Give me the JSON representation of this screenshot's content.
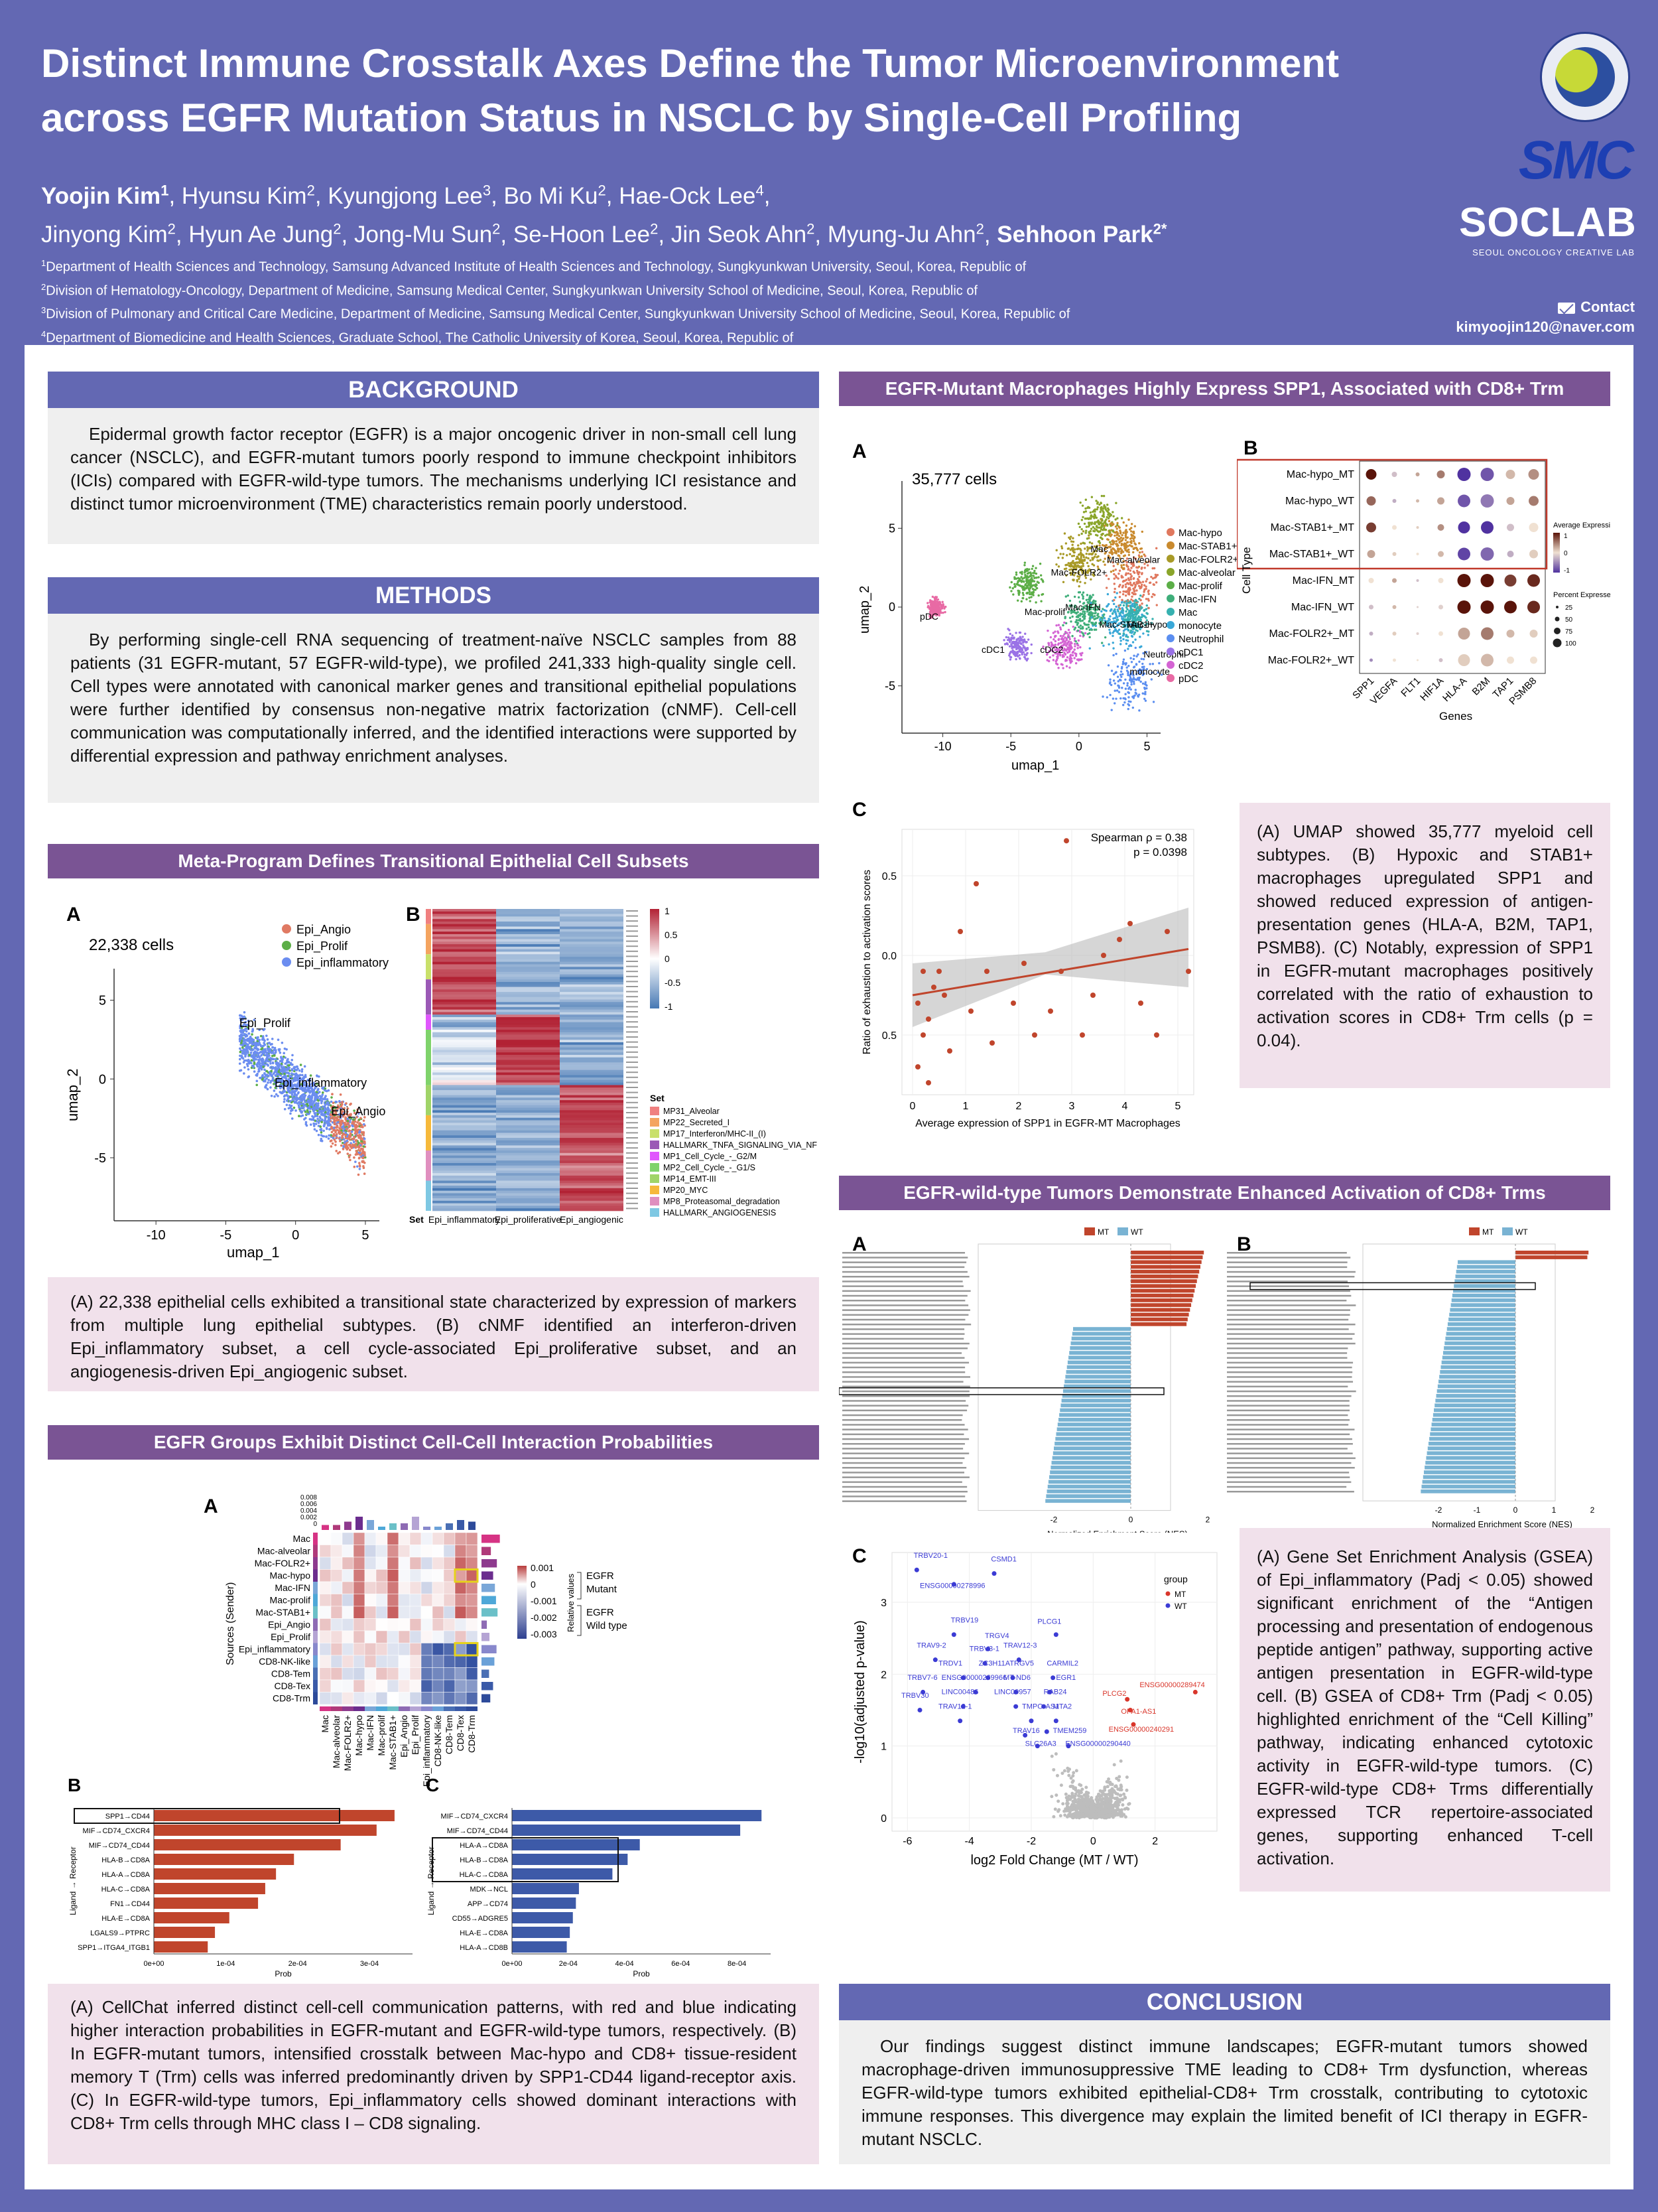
{
  "header": {
    "title_line1": "Distinct Immune Crosstalk Axes Define the Tumor Microenvironment",
    "title_line2": "across EGFR Mutation Status in NSCLC by Single-Cell Profiling",
    "authors_line1": [
      {
        "name": "Yoojin Kim",
        "sup": "1",
        "bold": true
      },
      {
        "name": "Hyunsu Kim",
        "sup": "2"
      },
      {
        "name": "Kyungjong Lee",
        "sup": "3"
      },
      {
        "name": "Bo Mi Ku",
        "sup": "2"
      },
      {
        "name": "Hae-Ock Lee",
        "sup": "4"
      }
    ],
    "authors_line2": [
      {
        "name": "Jinyong Kim",
        "sup": "2"
      },
      {
        "name": "Hyun Ae Jung",
        "sup": "2"
      },
      {
        "name": "Jong-Mu Sun",
        "sup": "2"
      },
      {
        "name": "Se-Hoon Lee",
        "sup": "2"
      },
      {
        "name": "Jin Seok Ahn",
        "sup": "2"
      },
      {
        "name": "Myung-Ju Ahn",
        "sup": "2"
      },
      {
        "name": "Sehhoon Park",
        "sup": "2*",
        "bold": true
      }
    ],
    "affiliations": [
      {
        "sup": "1",
        "text": "Department of Health Sciences and Technology, Samsung Advanced Institute of Health Sciences and Technology, Sungkyunkwan University, Seoul, Korea, Republic of"
      },
      {
        "sup": "2",
        "text": "Division of Hematology-Oncology, Department of Medicine, Samsung Medical Center, Sungkyunkwan University School of Medicine, Seoul, Korea, Republic of"
      },
      {
        "sup": "3",
        "text": "Division of Pulmonary and Critical Care Medicine, Department of Medicine, Samsung Medical Center, Sungkyunkwan University School of Medicine, Seoul, Korea, Republic of"
      },
      {
        "sup": "4",
        "text": "Department of Biomedicine and Health Sciences, Graduate School, The Catholic University of Korea, Seoul, Korea, Republic of"
      }
    ],
    "logo_smc": "SMC",
    "logo_soclab": "SOCLAB",
    "logo_soclab_sub": "SEOUL ONCOLOGY CREATIVE LAB",
    "contact_label": "Contact",
    "contact_email": "kimyoojin120@naver.com"
  },
  "background": {
    "heading": "BACKGROUND",
    "text": "Epidermal growth factor receptor (EGFR) is a major oncogenic driver in non-small cell lung cancer (NSCLC), and EGFR-mutant tumors poorly respond to immune checkpoint inhibitors (ICIs) compared with EGFR-wild-type tumors. The mechanisms underlying ICI resistance and distinct tumor microenvironment (TME) characteristics remain poorly understood."
  },
  "methods": {
    "heading": "METHODS",
    "text": "By performing single-cell RNA sequencing of treatment-naïve NSCLC samples from 88 patients (31 EGFR-mutant, 57 EGFR-wild-type), we profiled 241,333 high-quality single cell. Cell types were annotated with canonical marker genes and transitional epithelial populations were further identified by consensus non-negative matrix factorization (cNMF). Cell-cell communication was computationally inferred, and the identified interactions were supported by differential expression and pathway enrichment analyses."
  },
  "metaprogram": {
    "heading": "Meta-Program Defines Transitional Epithelial Cell Subsets",
    "panel_a": "A",
    "panel_b": "B",
    "cells_label": "22,338 cells",
    "legend": [
      "Epi_Angio",
      "Epi_Prolif",
      "Epi_inflammatory"
    ],
    "legend_colors": [
      "#e07a63",
      "#5cae47",
      "#6b8df0"
    ],
    "cluster_labels": [
      "Epi_Prolif",
      "Epi_inflammatory",
      "Epi_Angio"
    ],
    "xlabel": "umap_1",
    "ylabel": "umap_2",
    "xticks": [
      "-10",
      "-5",
      "0",
      "5"
    ],
    "yticks": [
      "5",
      "0",
      "-5"
    ],
    "heatmap_cols": [
      "Epi_inflammatory",
      "Epi_proliferative",
      "Epi_angiogenic"
    ],
    "heatmap_set_label": "Set",
    "heatmap_scale": [
      "1",
      "0.5",
      "0",
      "-0.5",
      "-1"
    ],
    "set_legend_title": "Set",
    "set_legend": [
      "MP31_Alveolar",
      "MP22_Secreted_I",
      "MP17_Interferon/MHC-II_(I)",
      "HALLMARK_TNFA_SIGNALING_VIA_NFKB",
      "MP1_Cell_Cycle_-_G2/M",
      "MP2_Cell_Cycle_-_G1/S",
      "MP14_EMT-III",
      "MP20_MYC",
      "MP8_Proteasomal_degradation",
      "HALLMARK_ANGIOGENESIS"
    ],
    "set_colors": [
      "#f08080",
      "#f4a460",
      "#c9e06a",
      "#9b59b6",
      "#e056fd",
      "#7fd36b",
      "#a0d468",
      "#f6b93b",
      "#e08fbf",
      "#7ec8e3"
    ],
    "caption": "(A) 22,338 epithelial cells exhibited a transitional state characterized by expression of markers from multiple lung epithelial subtypes. (B) cNMF identified an interferon-driven Epi_inflammatory subset, a cell cycle-associated Epi_proliferative subset, and an angiogenesis-driven Epi_angiogenic subset."
  },
  "cellchat": {
    "heading": "EGFR Groups Exhibit Distinct Cell-Cell Interaction Probabilities",
    "panel_a": "A",
    "panel_b": "B",
    "panel_c": "C",
    "senders": [
      "Mac",
      "Mac-alveolar",
      "Mac-FOLR2+",
      "Mac-hypo",
      "Mac-IFN",
      "Mac-prolif",
      "Mac-STAB1+",
      "Epi_Angio",
      "Epi_Prolif",
      "Epi_inflammatory",
      "CD8-NK-like",
      "CD8-Tem",
      "CD8-Tex",
      "CD8-Trm"
    ],
    "receivers": [
      "Mac",
      "Mac-alveolar",
      "Mac-FOLR2+",
      "Mac-hypo",
      "Mac-IFN",
      "Mac-prolif",
      "Mac-STAB1+",
      "Epi_Angio",
      "Epi_Prolif",
      "Epi_inflammatory",
      "CD8-NK-like",
      "CD8-Tem",
      "CD8-Tex",
      "CD8-Trm"
    ],
    "sender_axis": "Sources (Sender)",
    "legend_title": "Relative values",
    "legend_ticks": [
      "0.001",
      "0",
      "-0.001",
      "-0.002",
      "-0.003"
    ],
    "legend_mutant": "EGFR Mutant",
    "legend_wild": "EGFR Wild type",
    "top_ticks": [
      "0.008",
      "0.006",
      "0.004",
      "0.002",
      "0"
    ],
    "b_labels": [
      "SPP1→CD44",
      "MIF→CD74_CXCR4",
      "MIF→CD74_CD44",
      "HLA-B→CD8A",
      "HLA-A→CD8A",
      "HLA-C→CD8A",
      "FN1→CD44",
      "HLA-E→CD8A",
      "LGALS9→PTPRC",
      "SPP1→ITGA4_ITGB1"
    ],
    "b_values": [
      0.000335,
      0.00031,
      0.00026,
      0.000195,
      0.00017,
      0.000155,
      0.000145,
      0.000105,
      8.5e-05,
      7.5e-05
    ],
    "b_xticks": [
      "0e+00",
      "1e-04",
      "2e-04",
      "3e-04"
    ],
    "b_xlabel": "Prob",
    "b_ylabel": "Ligand → Receptor",
    "c_labels": [
      "MIF→CD74_CXCR4",
      "MIF→CD74_CD44",
      "HLA-A→CD8A",
      "HLA-B→CD8A",
      "HLA-C→CD8A",
      "MDK→NCL",
      "APP→CD74",
      "CD55→ADGRE5",
      "HLA-E→CD8A",
      "HLA-A→CD8B"
    ],
    "c_values": [
      0.00082,
      0.00075,
      0.00042,
      0.00038,
      0.00033,
      0.00022,
      0.00021,
      0.0002,
      0.00019,
      0.00018
    ],
    "c_xticks": [
      "0e+00",
      "2e-04",
      "4e-04",
      "6e-04",
      "8e-04"
    ],
    "c_xlabel": "Prob",
    "c_ylabel": "Ligand → Receptor",
    "caption": "(A) CellChat inferred distinct cell-cell communication patterns, with red and blue indicating higher interaction probabilities in EGFR-mutant and EGFR-wild-type tumors, respectively. (B) In EGFR-mutant tumors, intensified crosstalk between Mac-hypo and CD8+ tissue-resident memory T (Trm) cells was inferred predominantly driven by SPP1-CD44 ligand-receptor axis. (C) In EGFR-wild-type tumors, Epi_inflammatory cells showed dominant interactions with CD8+ Trm cells through MHC class I – CD8 signaling."
  },
  "macrophage": {
    "heading": "EGFR-Mutant Macrophages Highly Express SPP1, Associated with CD8+ Trm Exhaustion",
    "panel_a": "A",
    "panel_b": "B",
    "panel_c": "C",
    "cells_label": "35,777 cells",
    "legend": [
      "Mac-hypo",
      "Mac-STAB1+",
      "Mac-FOLR2+",
      "Mac-alveolar",
      "Mac-prolif",
      "Mac-IFN",
      "Mac",
      "monocyte",
      "Neutrophil",
      "cDC1",
      "cDC2",
      "pDC"
    ],
    "legend_colors": [
      "#e0785e",
      "#c98a2e",
      "#a89a27",
      "#8aa52a",
      "#5cae47",
      "#3fae7a",
      "#36b1b0",
      "#3aa8d8",
      "#5b8ef0",
      "#9a72e6",
      "#d463d3",
      "#e86aa4"
    ],
    "cluster_labels": [
      "Mac",
      "Mac-alveolar",
      "Mac-FOLR2+",
      "Mac-IFN",
      "Mac-prolif",
      "Mac-STAB1+",
      "Mac-hypo",
      "pDC",
      "cDC1",
      "cDC2",
      "Neutrophil",
      "monocyte"
    ],
    "xlabel": "umap_1",
    "ylabel": "umap_2",
    "xticks": [
      "-10",
      "-5",
      "0",
      "5"
    ],
    "yticks": [
      "5",
      "0",
      "-5"
    ],
    "dot_rows": [
      "Mac-hypo_MT",
      "Mac-hypo_WT",
      "Mac-STAB1+_MT",
      "Mac-STAB1+_WT",
      "Mac-IFN_MT",
      "Mac-IFN_WT",
      "Mac-FOLR2+_MT",
      "Mac-FOLR2+_WT"
    ],
    "dot_cols": [
      "SPP1",
      "VEGFA",
      "FLT1",
      "HIF1A",
      "HLA-A",
      "B2M",
      "TAP1",
      "PSMB8"
    ],
    "dot_xlabel": "Genes",
    "dot_ylabel": "Cell Type",
    "dot_legend_expr": "Average Expression",
    "dot_legend_expr_ticks": [
      "1",
      "0",
      "-1"
    ],
    "dot_legend_pct": "Percent Expressed",
    "dot_legend_pct_ticks": [
      "25",
      "50",
      "75",
      "100"
    ],
    "scatter_xlabel": "Average expression of SPP1 in EGFR-MT Macrophages",
    "scatter_ylabel": "Ratio of exhaustion to activation scores",
    "scatter_stats1": "Spearman ρ = 0.38",
    "scatter_stats2": "p = 0.0398",
    "scatter_xticks": [
      "0",
      "1",
      "2",
      "3",
      "4",
      "5"
    ],
    "scatter_yticks": [
      "0.5",
      "0.0",
      "0.5"
    ],
    "caption_html_parts": [
      "(A) UMAP showed 35,777 myeloid cell subtypes. (B) Hypoxic and STAB1+ macrophages upregulated SPP1 and showed reduced expression of antigen-presentation genes (HLA-A, B2M, TAP1, PSMB8). (C) Notably, expression of SPP1 in EGFR-mutant macrophages positively correlated with the ratio of exhaustion to activation scores in CD8+ Trm cells (p = 0.04)."
    ]
  },
  "wildtype": {
    "heading": "EGFR-wild-type Tumors Demonstrate Enhanced Activation of CD8+ Trms",
    "panel_a": "A",
    "panel_b": "B",
    "panel_c": "C",
    "legend_mt": "MT",
    "legend_wt": "WT",
    "nes_xlabel": "Normalized Enrichment Score (NES)",
    "nes_xticks_a": [
      "-2",
      "0",
      "2"
    ],
    "nes_xticks_b": [
      "-2",
      "-1",
      "0",
      "1",
      "2"
    ],
    "volcano_xlabel": "log2 Fold Change (MT / WT)",
    "volcano_ylabel": "-log10(adjusted p-value)",
    "volcano_xticks": [
      "-6",
      "-4",
      "-2",
      "0",
      "2"
    ],
    "volcano_yticks": [
      "0",
      "1",
      "2",
      "3"
    ],
    "volcano_group": "group",
    "volcano_genes_wt": [
      "TRBV20-1",
      "CSMD1",
      "ENSG00000278996",
      "TRBV19",
      "TRGV4",
      "PLCG1",
      "TRAV9-2",
      "TRBV3-1",
      "TRAV12-3",
      "TRDV1",
      "ZC3H11A",
      "TRGV5",
      "CARMIL2",
      "TRBV7-6",
      "ENSG00000269966",
      "MT-ND6",
      "EGR1",
      "TRBV30",
      "LINC00486",
      "LINC00957",
      "RAB24",
      "TRAV12-1",
      "TMPO-AS1",
      "MTA2",
      "TRAV16",
      "TMEM259",
      "SLC26A3",
      "ENSG00000290440"
    ],
    "volcano_genes_mt": [
      "PLCG2",
      "ENSG00000289474",
      "OPA1-AS1",
      "ENSG00000240291"
    ],
    "caption": "(A) Gene Set Enrichment Analysis (GSEA) of Epi_inflammatory (Padj < 0.05) showed significant enrichment of the “Antigen processing and presentation of endogenous peptide antigen” pathway, supporting active antigen presentation in EGFR-wild-type cell. (B) GSEA of CD8+ Trm (Padj < 0.05) highlighted enrichment of the “Cell Killing” pathway, indicating enhanced cytotoxic activity in EGFR-wild-type tumors. (C) EGFR-wild-type CD8+ Trms differentially expressed TCR repertoire-associated genes, supporting enhanced T-cell activation."
  },
  "conclusion": {
    "heading": "CONCLUSION",
    "text": "Our findings suggest distinct immune landscapes; EGFR-mutant tumors showed macrophage-driven immunosuppressive TME leading to CD8+ Trm dysfunction, whereas EGFR-wild-type tumors exhibited epithelial-CD8+ Trm crosstalk, contributing to cytotoxic immune responses. This divergence may explain the limited benefit of ICI therapy in EGFR-mutant NSCLC."
  },
  "colors": {
    "header_bg": "#6368b3",
    "section_purple": "#7a5494",
    "mt": "#c0452c",
    "wt": "#79b3d3",
    "caption_pink": "#f1e1eb",
    "text_gray": "#efefef"
  }
}
